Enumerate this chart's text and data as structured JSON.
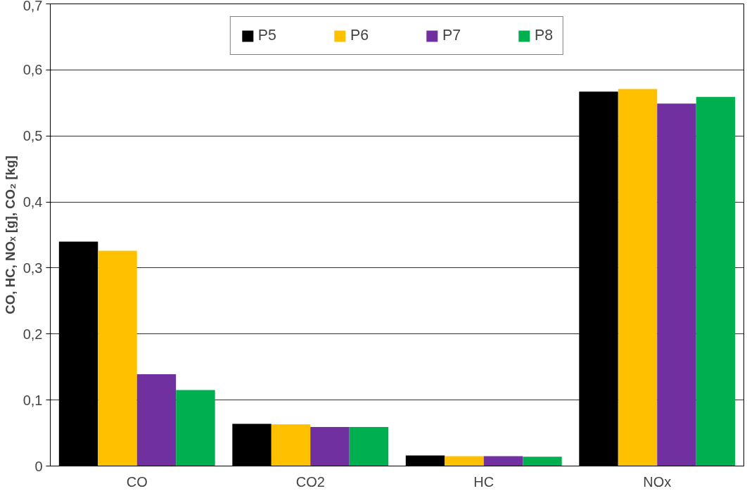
{
  "chart_data": {
    "type": "bar",
    "ylabel": "CO, HC, NOₓ [g], CO₂ [kg]",
    "categories": [
      "CO",
      "CO2",
      "HC",
      "NOx"
    ],
    "series": [
      {
        "name": "P5",
        "color": "#000000",
        "values": [
          0.34,
          0.064,
          0.016,
          0.567
        ]
      },
      {
        "name": "P6",
        "color": "#ffc000",
        "values": [
          0.326,
          0.063,
          0.015,
          0.571
        ]
      },
      {
        "name": "P7",
        "color": "#7030a0",
        "values": [
          0.139,
          0.059,
          0.015,
          0.549
        ]
      },
      {
        "name": "P8",
        "color": "#00b050",
        "values": [
          0.115,
          0.059,
          0.014,
          0.559
        ]
      }
    ],
    "ylim": [
      0,
      0.7
    ],
    "yticks": [
      0,
      {
        "value": 0.1,
        "label": "0,1"
      },
      {
        "value": 0.2,
        "label": "0,2"
      },
      {
        "value": 0.3,
        "label": "0,3"
      },
      {
        "value": 0.4,
        "label": "0,4"
      },
      {
        "value": 0.5,
        "label": "0,5"
      },
      {
        "value": 0.6,
        "label": "0,6"
      },
      {
        "value": 0.7,
        "label": "0,7"
      }
    ],
    "grid": "y",
    "legend": "top"
  }
}
